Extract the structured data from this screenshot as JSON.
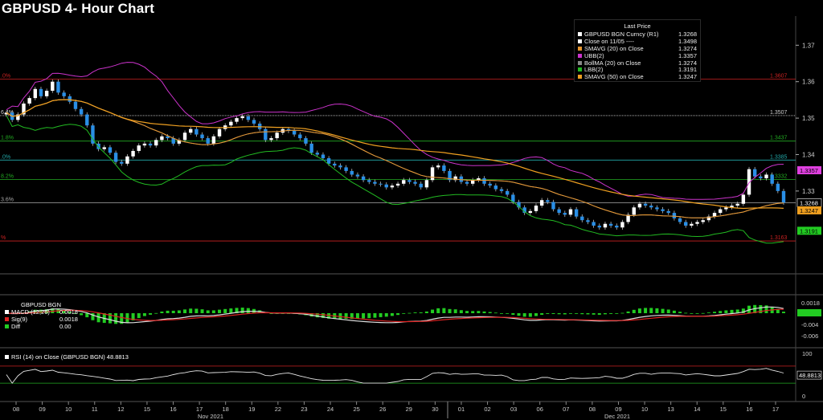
{
  "title": "GBPUSD 4- Hour Chart",
  "legend": {
    "header": "Last Price",
    "items": [
      {
        "label": "GBPUSD BGN Curncy  (R1)",
        "value": "1.3268",
        "color": "#ffffff"
      },
      {
        "label": "Close on 11/05 ----",
        "value": "1.3498",
        "color": "#ffffff"
      },
      {
        "label": "SMAVG (20)  on Close",
        "value": "1.3274",
        "color": "#e8962e"
      },
      {
        "label": "UBB(2)",
        "value": "1.3357",
        "color": "#cc33cc"
      },
      {
        "label": "BollMA (20)  on Close",
        "value": "1.3274",
        "color": "#888888"
      },
      {
        "label": "LBB(2)",
        "value": "1.3191",
        "color": "#22bb22"
      },
      {
        "label": "SMAVG (50)  on Close",
        "value": "1.3247",
        "color": "#f0a020"
      }
    ]
  },
  "chart_data": [
    {
      "type": "candlestick",
      "ylim": [
        1.3075,
        1.378
      ],
      "yticks": [
        "1.37",
        "1.36",
        "1.35",
        "1.34",
        "1.33"
      ],
      "hlines": [
        {
          "value": 1.3607,
          "label": "1.3607",
          "left": ".0%",
          "color": "#cc2222"
        },
        {
          "value": 1.3507,
          "label": "1.3507",
          "left": "6.4%",
          "color": "#cccccc",
          "dotted": true
        },
        {
          "value": 1.3437,
          "label": "1.3437",
          "left": "1.8%",
          "color": "#22aa22"
        },
        {
          "value": 1.3385,
          "label": "1.3385",
          "left": ".0%",
          "color": "#22aaaa"
        },
        {
          "value": 1.3332,
          "label": "1.3332",
          "left": "8.2%",
          "color": "#22aa22"
        },
        {
          "value": 1.3268,
          "label": "",
          "left": "3.6%",
          "color": "#aaaaaa"
        },
        {
          "value": 1.3163,
          "label": "1.3163",
          "left": "%",
          "color": "#cc2222"
        }
      ],
      "price_tags": [
        {
          "value": 1.3357,
          "label": "1.3357",
          "bg": "#e040e0",
          "fg": "#000"
        },
        {
          "value": 1.3268,
          "label": "1.3268",
          "bg": "#000000",
          "fg": "#fff",
          "border": "#fff"
        },
        {
          "value": 1.3247,
          "label": "1.3247",
          "bg": "#f0a020",
          "fg": "#000"
        },
        {
          "value": 1.3191,
          "label": "1.3191",
          "bg": "#22cc22",
          "fg": "#000"
        }
      ],
      "closes": [
        1.3515,
        1.3495,
        1.351,
        1.354,
        1.3555,
        1.358,
        1.356,
        1.3575,
        1.36,
        1.357,
        1.356,
        1.3545,
        1.3525,
        1.351,
        1.348,
        1.343,
        1.3415,
        1.342,
        1.3405,
        1.338,
        1.3375,
        1.3395,
        1.341,
        1.3425,
        1.343,
        1.3425,
        1.344,
        1.345,
        1.3445,
        1.343,
        1.344,
        1.346,
        1.347,
        1.3455,
        1.3445,
        1.343,
        1.345,
        1.347,
        1.348,
        1.349,
        1.35,
        1.3505,
        1.3495,
        1.3485,
        1.347,
        1.344,
        1.3445,
        1.346,
        1.347,
        1.3465,
        1.3455,
        1.3445,
        1.343,
        1.3405,
        1.34,
        1.339,
        1.3375,
        1.337,
        1.3365,
        1.3355,
        1.3345,
        1.334,
        1.333,
        1.3325,
        1.332,
        1.3318,
        1.331,
        1.3315,
        1.332,
        1.333,
        1.3325,
        1.332,
        1.331,
        1.333,
        1.3365,
        1.337,
        1.3355,
        1.333,
        1.334,
        1.3325,
        1.332,
        1.333,
        1.3335,
        1.332,
        1.3315,
        1.3305,
        1.33,
        1.329,
        1.327,
        1.3255,
        1.324,
        1.3245,
        1.326,
        1.3275,
        1.327,
        1.325,
        1.324,
        1.3235,
        1.325,
        1.323,
        1.322,
        1.3215,
        1.3205,
        1.32,
        1.321,
        1.3205,
        1.32,
        1.3215,
        1.3235,
        1.3255,
        1.3265,
        1.326,
        1.3255,
        1.325,
        1.3245,
        1.324,
        1.3225,
        1.3215,
        1.3205,
        1.321,
        1.3215,
        1.322,
        1.323,
        1.324,
        1.325,
        1.3255,
        1.326,
        1.3265,
        1.329,
        1.336,
        1.334,
        1.3335,
        1.3345,
        1.332,
        1.33,
        1.3268
      ],
      "macd": {
        "labels": [
          "GBPUSD BGN",
          "MACD (12,26)",
          "Sig(9)",
          "Diff"
        ],
        "values": [
          "",
          "0.0018",
          "0.0018",
          "0.00"
        ],
        "colors": [
          "",
          "#ffffff",
          "#dd2222",
          "#22cc22"
        ],
        "yticks": [
          "0.0018",
          "-0.002",
          "-0.004",
          "-0.006"
        ]
      },
      "rsi": {
        "label": "RSI (14)  on Close (GBPUSD BGN) 48.8813",
        "yticks": [
          "100",
          "50",
          "0"
        ],
        "value_tag": "48.8813",
        "levels": [
          70,
          30
        ]
      },
      "x_labels": [
        "08",
        "09",
        "10",
        "11",
        "12",
        "15",
        "16",
        "17",
        "18",
        "19",
        "22",
        "23",
        "24",
        "25",
        "26",
        "29",
        "30",
        "01",
        "02",
        "03",
        "06",
        "07",
        "08",
        "09",
        "10",
        "13",
        "14",
        "15",
        "16",
        "17"
      ],
      "x_months": [
        "Nov 2021",
        "Dec 2021"
      ]
    }
  ]
}
